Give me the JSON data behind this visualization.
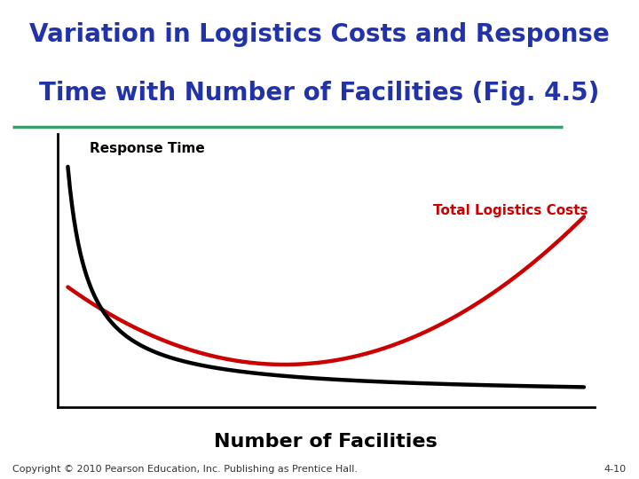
{
  "title_line1": "Variation in Logistics Costs and Response",
  "title_line2": "Time with Number of Facilities (Fig. 4.5)",
  "title_color": "#2233AA",
  "title_fontsize": 20,
  "xlabel": "Number of Facilities",
  "xlabel_fontsize": 16,
  "xlabel_color": "#000000",
  "response_time_label": "Response Time",
  "response_time_label_color": "#000000",
  "response_time_label_fontsize": 11,
  "total_logistics_label": "Total Logistics Costs",
  "total_logistics_label_color": "#CC0000",
  "total_logistics_label_fontsize": 11,
  "response_time_color": "#000000",
  "total_logistics_color": "#CC0000",
  "line_width": 3.2,
  "background_color": "#FFFFFF",
  "separator_color": "#3A9B6F",
  "copyright_text": "Copyright © 2010 Pearson Education, Inc. Publishing as Prentice Hall.",
  "copyright_fontsize": 8,
  "page_number": "4-10",
  "page_number_fontsize": 8
}
